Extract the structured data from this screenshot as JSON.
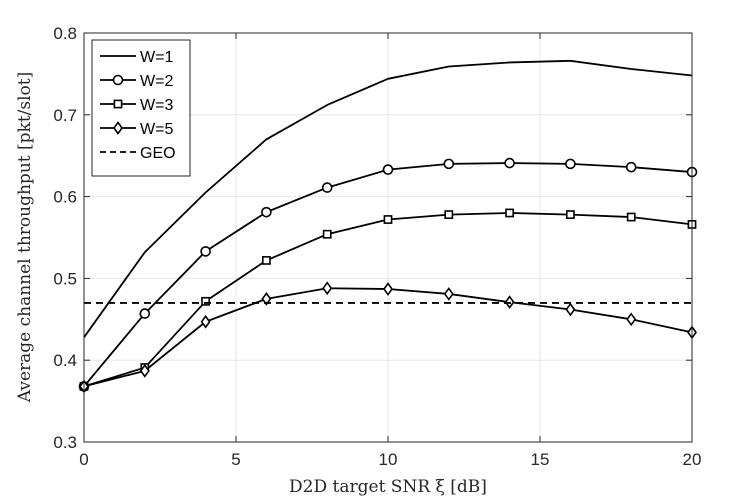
{
  "chart_data": {
    "type": "line",
    "title": "",
    "xlabel": "D2D target SNR ξ [dB]",
    "ylabel": "Average channel throughput [pkt/slot]",
    "xlim": [
      0,
      20
    ],
    "ylim": [
      0.3,
      0.8
    ],
    "xticks": [
      0,
      5,
      10,
      15,
      20
    ],
    "yticks": [
      0.3,
      0.4,
      0.5,
      0.6,
      0.7,
      0.8
    ],
    "xtick_labels": [
      "0",
      "5",
      "10",
      "15",
      "20"
    ],
    "ytick_labels": [
      "0.3",
      "0.4",
      "0.5",
      "0.6",
      "0.7",
      "0.8"
    ],
    "grid": true,
    "legend_position": "top-left",
    "series": [
      {
        "name": "W=1",
        "marker": "none",
        "style": "solid",
        "x": [
          0,
          2,
          4,
          6,
          8,
          10,
          12,
          14,
          16,
          18,
          20
        ],
        "y": [
          0.428,
          0.532,
          0.605,
          0.67,
          0.712,
          0.744,
          0.759,
          0.764,
          0.766,
          0.756,
          0.748
        ]
      },
      {
        "name": "W=2",
        "marker": "circle",
        "style": "solid",
        "x": [
          0,
          2,
          4,
          6,
          8,
          10,
          12,
          14,
          16,
          18,
          20
        ],
        "y": [
          0.368,
          0.457,
          0.533,
          0.581,
          0.611,
          0.633,
          0.64,
          0.641,
          0.64,
          0.636,
          0.63
        ]
      },
      {
        "name": "W=3",
        "marker": "square",
        "style": "solid",
        "x": [
          0,
          2,
          4,
          6,
          8,
          10,
          12,
          14,
          16,
          18,
          20
        ],
        "y": [
          0.368,
          0.391,
          0.472,
          0.522,
          0.554,
          0.572,
          0.578,
          0.58,
          0.578,
          0.575,
          0.566
        ]
      },
      {
        "name": "W=5",
        "marker": "diamond",
        "style": "solid",
        "x": [
          0,
          2,
          4,
          6,
          8,
          10,
          12,
          14,
          16,
          18,
          20
        ],
        "y": [
          0.368,
          0.387,
          0.447,
          0.475,
          0.488,
          0.487,
          0.481,
          0.471,
          0.462,
          0.45,
          0.434
        ]
      },
      {
        "name": "GEO",
        "marker": "none",
        "style": "dashed",
        "x": [
          0,
          20
        ],
        "y": [
          0.47,
          0.47
        ]
      }
    ]
  }
}
